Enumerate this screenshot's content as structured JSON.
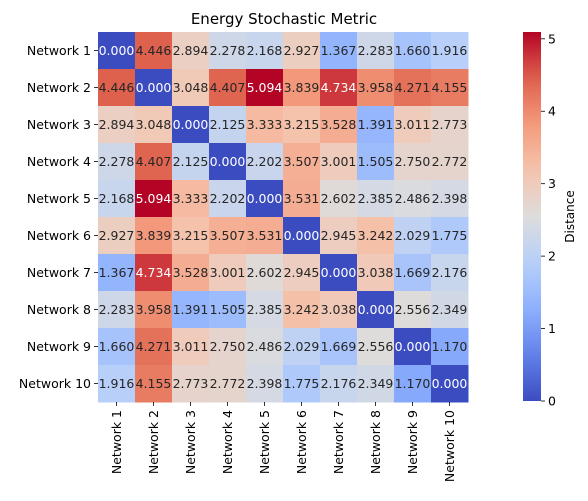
{
  "chart_data": {
    "type": "heatmap",
    "title": "Energy Stochastic Metric",
    "xlabel": "",
    "ylabel": "",
    "colorbar_label": "Distance",
    "colormap": "coolwarm",
    "vmin": 0,
    "vmax": 5.094,
    "colorbar_ticks": [
      "0",
      "1",
      "2",
      "3",
      "4",
      "5"
    ],
    "x_categories": [
      "Network 1",
      "Network 2",
      "Network 3",
      "Network 4",
      "Network 5",
      "Network 6",
      "Network 7",
      "Network 8",
      "Network 9",
      "Network 10"
    ],
    "y_categories": [
      "Network 1",
      "Network 2",
      "Network 3",
      "Network 4",
      "Network 5",
      "Network 6",
      "Network 7",
      "Network 8",
      "Network 9",
      "Network 10"
    ],
    "values": [
      [
        0.0,
        4.446,
        2.894,
        2.278,
        2.168,
        2.927,
        1.367,
        2.283,
        1.66,
        1.916
      ],
      [
        4.446,
        0.0,
        3.048,
        4.407,
        5.094,
        3.839,
        4.734,
        3.958,
        4.271,
        4.155
      ],
      [
        2.894,
        3.048,
        0.0,
        2.125,
        3.333,
        3.215,
        3.528,
        1.391,
        3.011,
        2.773
      ],
      [
        2.278,
        4.407,
        2.125,
        0.0,
        2.202,
        3.507,
        3.001,
        1.505,
        2.75,
        2.772
      ],
      [
        2.168,
        5.094,
        3.333,
        2.202,
        0.0,
        3.531,
        2.602,
        2.385,
        2.486,
        2.398
      ],
      [
        2.927,
        3.839,
        3.215,
        3.507,
        3.531,
        0.0,
        2.945,
        3.242,
        2.029,
        1.775
      ],
      [
        1.367,
        4.734,
        3.528,
        3.001,
        2.602,
        2.945,
        0.0,
        3.038,
        1.669,
        2.176
      ],
      [
        2.283,
        3.958,
        1.391,
        1.505,
        2.385,
        3.242,
        3.038,
        0.0,
        2.556,
        2.349
      ],
      [
        1.66,
        4.271,
        3.011,
        2.75,
        2.486,
        2.029,
        1.669,
        2.556,
        0.0,
        1.17
      ],
      [
        1.916,
        4.155,
        2.773,
        2.772,
        2.398,
        1.775,
        2.176,
        2.349,
        1.17,
        0.0
      ]
    ],
    "annotation_format": "3 decimals"
  }
}
